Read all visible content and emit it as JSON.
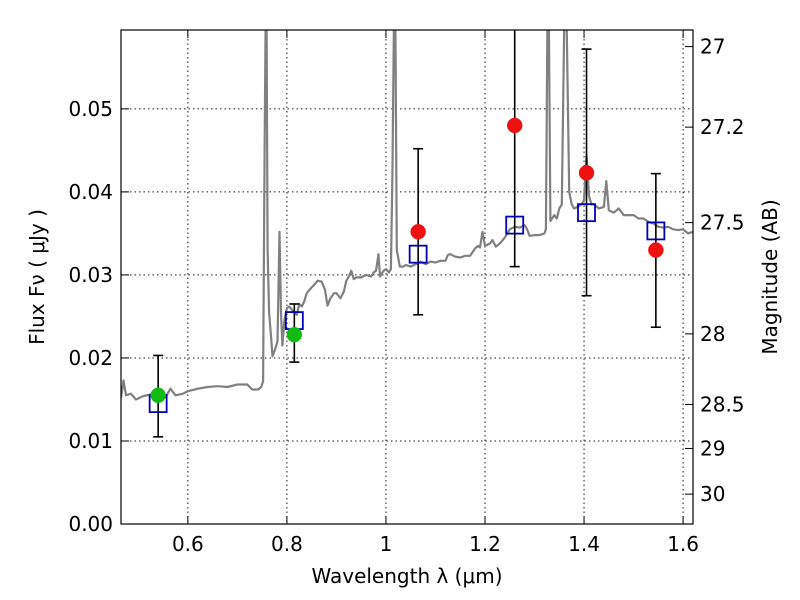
{
  "chart_data": {
    "type": "scatter",
    "xlabel": "Wavelength  λ (μm)",
    "ylabel": "Flux  Fν  ( μJy )",
    "y2label": "Magnitude (AB)",
    "xlim": [
      0.465,
      1.62
    ],
    "ylim": [
      0.0,
      0.0595
    ],
    "grid": true,
    "x_ticks": [
      {
        "value": 0.6,
        "label": "0.6"
      },
      {
        "value": 0.8,
        "label": "0.8"
      },
      {
        "value": 1.0,
        "label": "1"
      },
      {
        "value": 1.2,
        "label": "1.2"
      },
      {
        "value": 1.4,
        "label": "1.4"
      },
      {
        "value": 1.6,
        "label": "1.6"
      }
    ],
    "y_ticks": [
      {
        "value": 0.0,
        "label": "0.00"
      },
      {
        "value": 0.01,
        "label": "0.01"
      },
      {
        "value": 0.02,
        "label": "0.02"
      },
      {
        "value": 0.03,
        "label": "0.03"
      },
      {
        "value": 0.04,
        "label": "0.04"
      },
      {
        "value": 0.05,
        "label": "0.05"
      }
    ],
    "y2_ticks": [
      {
        "flux": 0.0575,
        "label": "27"
      },
      {
        "flux": 0.0478,
        "label": "27.2"
      },
      {
        "flux": 0.0363,
        "label": "27.5"
      },
      {
        "flux": 0.0229,
        "label": "28"
      },
      {
        "flux": 0.0144,
        "label": "28.5"
      },
      {
        "flux": 0.0091,
        "label": "29"
      },
      {
        "flux": 0.0036,
        "label": "30"
      }
    ],
    "colors": {
      "spectrum": "#808080",
      "model": "#0000bb",
      "observed_red": "#ee1111",
      "observed_green": "#11bb11",
      "errorbar": "#000000"
    },
    "series": [
      {
        "name": "template spectrum",
        "type": "line",
        "points": [
          [
            0.465,
            0.0152
          ],
          [
            0.47,
            0.0173
          ],
          [
            0.475,
            0.0155
          ],
          [
            0.485,
            0.0157
          ],
          [
            0.495,
            0.015
          ],
          [
            0.51,
            0.0154
          ],
          [
            0.525,
            0.0156
          ],
          [
            0.54,
            0.015
          ],
          [
            0.555,
            0.0153
          ],
          [
            0.565,
            0.0163
          ],
          [
            0.575,
            0.0155
          ],
          [
            0.59,
            0.0157
          ],
          [
            0.6,
            0.016
          ],
          [
            0.62,
            0.0163
          ],
          [
            0.64,
            0.0165
          ],
          [
            0.66,
            0.0166
          ],
          [
            0.68,
            0.0165
          ],
          [
            0.7,
            0.0168
          ],
          [
            0.72,
            0.0168
          ],
          [
            0.73,
            0.0162
          ],
          [
            0.742,
            0.0162
          ],
          [
            0.748,
            0.0165
          ],
          [
            0.752,
            0.0172
          ],
          [
            0.755,
            0.045
          ],
          [
            0.757,
            0.06
          ],
          [
            0.759,
            0.06
          ],
          [
            0.761,
            0.033
          ],
          [
            0.764,
            0.0255
          ],
          [
            0.768,
            0.0225
          ],
          [
            0.771,
            0.0202
          ],
          [
            0.776,
            0.021
          ],
          [
            0.781,
            0.022
          ],
          [
            0.785,
            0.0352
          ],
          [
            0.788,
            0.0255
          ],
          [
            0.791,
            0.0215
          ],
          [
            0.795,
            0.0245
          ],
          [
            0.8,
            0.026
          ],
          [
            0.805,
            0.0262
          ],
          [
            0.81,
            0.0258
          ],
          [
            0.815,
            0.0255
          ],
          [
            0.82,
            0.0252
          ],
          [
            0.825,
            0.0265
          ],
          [
            0.83,
            0.0262
          ],
          [
            0.835,
            0.0268
          ],
          [
            0.84,
            0.0278
          ],
          [
            0.847,
            0.0283
          ],
          [
            0.855,
            0.0288
          ],
          [
            0.862,
            0.0293
          ],
          [
            0.87,
            0.0292
          ],
          [
            0.877,
            0.0282
          ],
          [
            0.882,
            0.0263
          ],
          [
            0.888,
            0.0272
          ],
          [
            0.895,
            0.0278
          ],
          [
            0.9,
            0.0278
          ],
          [
            0.908,
            0.0272
          ],
          [
            0.915,
            0.028
          ],
          [
            0.92,
            0.0293
          ],
          [
            0.925,
            0.0298
          ],
          [
            0.93,
            0.0305
          ],
          [
            0.935,
            0.0295
          ],
          [
            0.94,
            0.0297
          ],
          [
            0.95,
            0.0297
          ],
          [
            0.96,
            0.03
          ],
          [
            0.97,
            0.0298
          ],
          [
            0.975,
            0.0303
          ],
          [
            0.98,
            0.0305
          ],
          [
            0.985,
            0.0325
          ],
          [
            0.988,
            0.0298
          ],
          [
            0.995,
            0.0305
          ],
          [
            1.0,
            0.0307
          ],
          [
            1.006,
            0.0303
          ],
          [
            1.01,
            0.0307
          ],
          [
            1.013,
            0.042
          ],
          [
            1.016,
            0.06
          ],
          [
            1.019,
            0.06
          ],
          [
            1.022,
            0.033
          ],
          [
            1.028,
            0.031
          ],
          [
            1.035,
            0.031
          ],
          [
            1.04,
            0.0312
          ],
          [
            1.05,
            0.031
          ],
          [
            1.06,
            0.0313
          ],
          [
            1.07,
            0.0316
          ],
          [
            1.08,
            0.0313
          ],
          [
            1.09,
            0.0316
          ],
          [
            1.1,
            0.0315
          ],
          [
            1.11,
            0.0317
          ],
          [
            1.12,
            0.0317
          ],
          [
            1.125,
            0.0324
          ],
          [
            1.13,
            0.0325
          ],
          [
            1.14,
            0.0322
          ],
          [
            1.15,
            0.0321
          ],
          [
            1.16,
            0.0323
          ],
          [
            1.17,
            0.0323
          ],
          [
            1.18,
            0.0332
          ],
          [
            1.186,
            0.0335
          ],
          [
            1.19,
            0.0333
          ],
          [
            1.195,
            0.0352
          ],
          [
            1.2,
            0.0335
          ],
          [
            1.21,
            0.0338
          ],
          [
            1.215,
            0.0342
          ],
          [
            1.222,
            0.0334
          ],
          [
            1.23,
            0.0338
          ],
          [
            1.24,
            0.0345
          ],
          [
            1.25,
            0.0355
          ],
          [
            1.26,
            0.0358
          ],
          [
            1.27,
            0.0357
          ],
          [
            1.28,
            0.036
          ],
          [
            1.285,
            0.0355
          ],
          [
            1.29,
            0.0347
          ],
          [
            1.3,
            0.0348
          ],
          [
            1.31,
            0.0348
          ],
          [
            1.32,
            0.035
          ],
          [
            1.323,
            0.0355
          ],
          [
            1.326,
            0.06
          ],
          [
            1.329,
            0.06
          ],
          [
            1.332,
            0.0365
          ],
          [
            1.34,
            0.0372
          ],
          [
            1.345,
            0.0368
          ],
          [
            1.35,
            0.038
          ],
          [
            1.355,
            0.0385
          ],
          [
            1.36,
            0.06
          ],
          [
            1.365,
            0.06
          ],
          [
            1.37,
            0.04
          ],
          [
            1.375,
            0.0385
          ],
          [
            1.38,
            0.038
          ],
          [
            1.387,
            0.0382
          ],
          [
            1.395,
            0.0385
          ],
          [
            1.4,
            0.039
          ],
          [
            1.405,
            0.0445
          ],
          [
            1.41,
            0.0395
          ],
          [
            1.415,
            0.0385
          ],
          [
            1.42,
            0.0385
          ],
          [
            1.43,
            0.038
          ],
          [
            1.44,
            0.0382
          ],
          [
            1.445,
            0.0413
          ],
          [
            1.45,
            0.0378
          ],
          [
            1.46,
            0.0375
          ],
          [
            1.47,
            0.038
          ],
          [
            1.48,
            0.0372
          ],
          [
            1.49,
            0.0372
          ],
          [
            1.5,
            0.0372
          ],
          [
            1.51,
            0.0368
          ],
          [
            1.52,
            0.0368
          ],
          [
            1.53,
            0.0364
          ],
          [
            1.54,
            0.0362
          ],
          [
            1.55,
            0.0358
          ],
          [
            1.56,
            0.0357
          ],
          [
            1.57,
            0.0358
          ],
          [
            1.58,
            0.0355
          ],
          [
            1.59,
            0.0354
          ],
          [
            1.6,
            0.0355
          ],
          [
            1.61,
            0.035
          ],
          [
            1.62,
            0.0352
          ]
        ]
      },
      {
        "name": "model photometry",
        "type": "open-square",
        "x": [
          0.54,
          0.815,
          1.065,
          1.26,
          1.405,
          1.545
        ],
        "y": [
          0.0145,
          0.0245,
          0.0325,
          0.036,
          0.0375,
          0.0353
        ]
      },
      {
        "name": "observed (red)",
        "type": "filled-circle",
        "x": [
          1.065,
          1.26,
          1.405,
          1.545
        ],
        "y": [
          0.0352,
          0.048,
          0.0423,
          0.033
        ],
        "err_low": [
          0.0252,
          0.031,
          0.0275,
          0.0237
        ],
        "err_high": [
          0.0452,
          0.06,
          0.0572,
          0.0422
        ]
      },
      {
        "name": "observed (green)",
        "type": "filled-circle",
        "x": [
          0.54,
          0.815
        ],
        "y": [
          0.0155,
          0.0228
        ],
        "err_low": [
          0.0105,
          0.0195
        ],
        "err_high": [
          0.0203,
          0.0265
        ]
      }
    ]
  }
}
